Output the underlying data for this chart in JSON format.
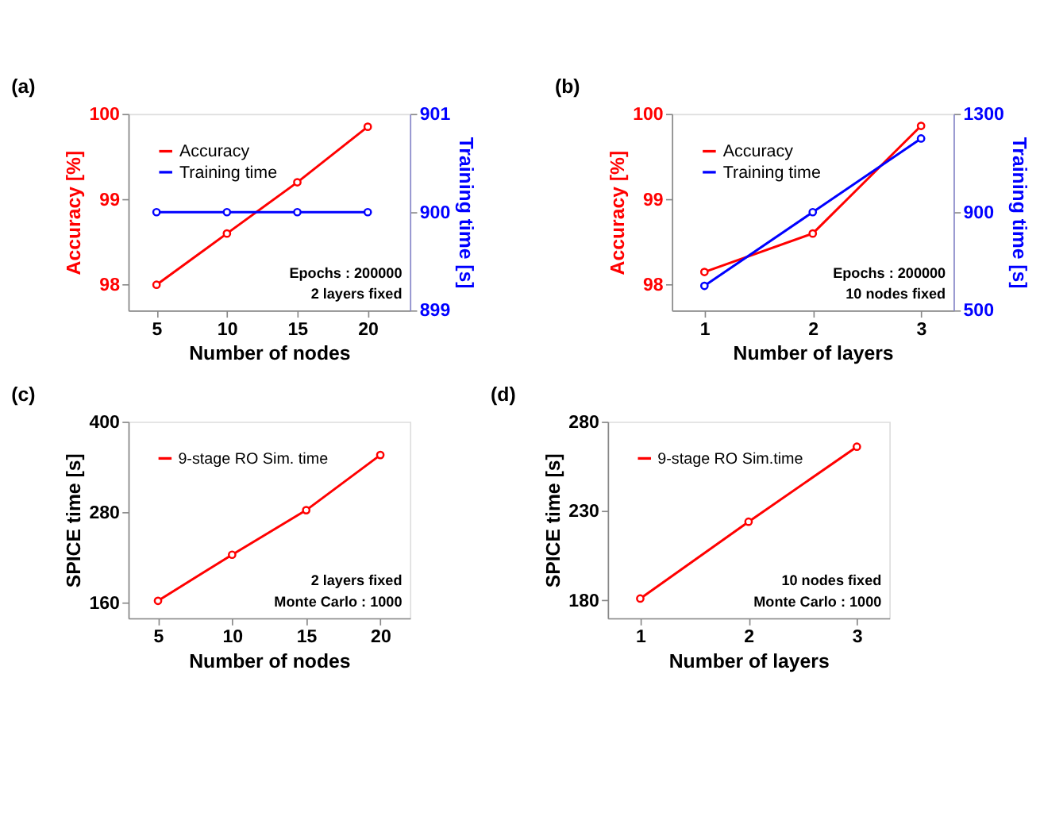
{
  "chart_data": [
    {
      "type": "line",
      "title": "(a)",
      "xlabel": "Number of nodes",
      "ylabel": "Accuracy [%]",
      "y2label": "Training time [s]",
      "x": [
        5,
        10,
        15,
        20
      ],
      "xlim": [
        3,
        23
      ],
      "xticks": [
        5,
        10,
        15,
        20
      ],
      "ylim": [
        97.7,
        100
      ],
      "yticks": [
        98,
        99,
        100
      ],
      "y2lim": [
        899,
        901
      ],
      "y2ticks": [
        899,
        900,
        901
      ],
      "legend": "top left",
      "marker": "circle",
      "line_style": "solid",
      "grid": false,
      "series": [
        {
          "name": "Accuracy",
          "color": "#ff0000",
          "values": [
            98.0,
            98.6,
            99.2,
            99.85
          ]
        },
        {
          "name": "Training time",
          "color": "#0000ff",
          "axis": "y2",
          "values": [
            900,
            900,
            900,
            900
          ]
        }
      ],
      "annotations": [
        "Epochs : 200000",
        "2 layers fixed"
      ]
    },
    {
      "type": "line",
      "title": "(b)",
      "xlabel": "Number of layers",
      "ylabel": "Accuracy [%]",
      "y2label": "Training time [s]",
      "x": [
        1,
        2,
        3
      ],
      "xlim": [
        0.7,
        3.3
      ],
      "xticks": [
        1,
        2,
        3
      ],
      "ylim": [
        97.7,
        100
      ],
      "yticks": [
        98,
        99,
        100
      ],
      "y2lim": [
        500,
        1300
      ],
      "y2ticks": [
        500,
        900,
        1300
      ],
      "legend": "top left",
      "marker": "circle",
      "line_style": "solid",
      "grid": false,
      "series": [
        {
          "name": "Accuracy",
          "color": "#ff0000",
          "values": [
            98.15,
            98.6,
            99.86
          ]
        },
        {
          "name": "Training time",
          "color": "#0000ff",
          "axis": "y2",
          "values": [
            600,
            900,
            1200
          ]
        }
      ],
      "annotations": [
        "Epochs : 200000",
        "10 nodes fixed"
      ]
    },
    {
      "type": "line",
      "title": "(c)",
      "xlabel": "Number of nodes",
      "ylabel": "SPICE time [s]",
      "x": [
        5,
        10,
        15,
        20
      ],
      "xlim": [
        3,
        22
      ],
      "xticks": [
        5,
        10,
        15,
        20
      ],
      "ylim": [
        140,
        400
      ],
      "yticks": [
        160,
        280,
        400
      ],
      "legend": "top left",
      "marker": "circle",
      "line_style": "solid",
      "grid": false,
      "series": [
        {
          "name": "9-stage RO Sim. time",
          "color": "#ff0000",
          "values": [
            163,
            224,
            283,
            356
          ]
        }
      ],
      "annotations": [
        "2 layers fixed",
        "Monte Carlo : 1000"
      ]
    },
    {
      "type": "line",
      "title": "(d)",
      "xlabel": "Number of layers",
      "ylabel": "SPICE time [s]",
      "x": [
        1,
        2,
        3
      ],
      "xlim": [
        0.7,
        3.3
      ],
      "xticks": [
        1,
        2,
        3
      ],
      "ylim": [
        170,
        280
      ],
      "yticks": [
        180,
        230,
        280
      ],
      "legend": "top left",
      "marker": "circle",
      "line_style": "solid",
      "grid": false,
      "series": [
        {
          "name": "9-stage RO Sim.time",
          "color": "#ff0000",
          "values": [
            181,
            224,
            266
          ]
        }
      ],
      "annotations": [
        "10 nodes fixed",
        "Monte Carlo : 1000"
      ]
    }
  ]
}
